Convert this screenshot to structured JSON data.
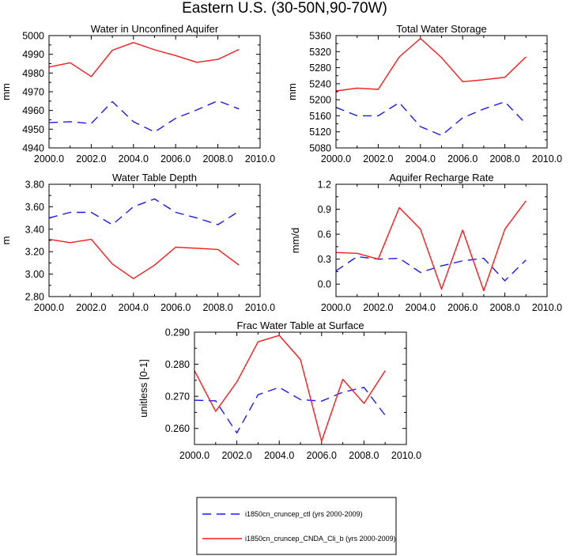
{
  "figure_title": "Eastern U.S. (30-50N,90-70W)",
  "colors": {
    "ctl": "#1a1aff",
    "exp": "#ff1a1a",
    "axis": "#000000"
  },
  "legend": [
    {
      "label": "i1850cn_cruncep_ctl (yrs 2000-2009)",
      "color": "#1a1aff",
      "style": "dashed"
    },
    {
      "label": "i1850cn_cruncep_CNDA_Cli_b (yrs 2000-2009)",
      "color": "#ff1a1a",
      "style": "solid"
    }
  ],
  "chart_data": [
    {
      "type": "line",
      "title": "Water in Unconfined Aquifer",
      "xlabel": "",
      "ylabel": "mm",
      "xlim": [
        2000,
        2010
      ],
      "ylim": [
        4940,
        5000
      ],
      "xticks": [
        "2000.0",
        "2002.0",
        "2004.0",
        "2006.0",
        "2008.0",
        "2010.0"
      ],
      "yticks": [
        "4940",
        "4950",
        "4960",
        "4970",
        "4980",
        "4990",
        "5000"
      ],
      "x": [
        2000,
        2001,
        2002,
        2003,
        2004,
        2005,
        2006,
        2007,
        2008,
        2009
      ],
      "series": [
        {
          "name": "i1850cn_cruncep_ctl (yrs 2000-2009)",
          "values": [
            4953.5,
            4954.0,
            4953.0,
            4964.7,
            4954.0,
            4948.5,
            4955.8,
            4960.3,
            4965.2,
            4960.8
          ]
        },
        {
          "name": "i1850cn_cruncep_CNDA_Cli_b (yrs 2000-2009)",
          "values": [
            4983.2,
            4985.5,
            4978.1,
            4992.2,
            4996.3,
            4992.4,
            4989.3,
            4985.7,
            4987.3,
            4992.6
          ]
        }
      ]
    },
    {
      "type": "line",
      "title": "Total Water Storage",
      "xlabel": "",
      "ylabel": "mm",
      "xlim": [
        2000,
        2010
      ],
      "ylim": [
        5080,
        5360
      ],
      "xticks": [
        "2000.0",
        "2002.0",
        "2004.0",
        "2006.0",
        "2008.0",
        "2010.0"
      ],
      "yticks": [
        "5080",
        "5120",
        "5160",
        "5200",
        "5240",
        "5280",
        "5320",
        "5360"
      ],
      "x": [
        2000,
        2001,
        2002,
        2003,
        2004,
        2005,
        2006,
        2007,
        2008,
        2009
      ],
      "series": [
        {
          "name": "i1850cn_cruncep_ctl (yrs 2000-2009)",
          "values": [
            5181,
            5160,
            5160,
            5193,
            5133,
            5111,
            5155,
            5177,
            5195,
            5140
          ]
        },
        {
          "name": "i1850cn_cruncep_CNDA_Cli_b (yrs 2000-2009)",
          "values": [
            5222,
            5229,
            5226,
            5307,
            5353,
            5305,
            5245,
            5250,
            5256,
            5307
          ]
        }
      ]
    },
    {
      "type": "line",
      "title": "Water Table Depth",
      "xlabel": "",
      "ylabel": "m",
      "xlim": [
        2000,
        2010
      ],
      "ylim": [
        2.8,
        3.8
      ],
      "xticks": [
        "2000.0",
        "2002.0",
        "2004.0",
        "2006.0",
        "2008.0",
        "2010.0"
      ],
      "yticks": [
        "2.80",
        "3.00",
        "3.20",
        "3.40",
        "3.60",
        "3.80"
      ],
      "x": [
        2000,
        2001,
        2002,
        2003,
        2004,
        2005,
        2006,
        2007,
        2008,
        2009
      ],
      "series": [
        {
          "name": "i1850cn_cruncep_ctl (yrs 2000-2009)",
          "values": [
            3.5,
            3.55,
            3.55,
            3.44,
            3.6,
            3.67,
            3.55,
            3.5,
            3.44,
            3.56
          ]
        },
        {
          "name": "i1850cn_cruncep_CNDA_Cli_b (yrs 2000-2009)",
          "values": [
            3.31,
            3.28,
            3.31,
            3.09,
            2.96,
            3.08,
            3.24,
            3.23,
            3.22,
            3.08
          ]
        }
      ]
    },
    {
      "type": "line",
      "title": "Aquifer Recharge Rate",
      "xlabel": "",
      "ylabel": "mm/d",
      "xlim": [
        2000,
        2010
      ],
      "ylim": [
        -0.15,
        1.2
      ],
      "xticks": [
        "2000.0",
        "2002.0",
        "2004.0",
        "2006.0",
        "2008.0",
        "2010.0"
      ],
      "yticks": [
        "0.0",
        "0.3",
        "0.6",
        "0.9",
        "1.2"
      ],
      "x": [
        2000,
        2001,
        2002,
        2003,
        2004,
        2005,
        2006,
        2007,
        2008,
        2009
      ],
      "series": [
        {
          "name": "i1850cn_cruncep_ctl (yrs 2000-2009)",
          "values": [
            0.16,
            0.33,
            0.3,
            0.31,
            0.14,
            0.22,
            0.28,
            0.31,
            0.04,
            0.29
          ]
        },
        {
          "name": "i1850cn_cruncep_CNDA_Cli_b (yrs 2000-2009)",
          "values": [
            0.38,
            0.37,
            0.3,
            0.92,
            0.66,
            -0.06,
            0.65,
            -0.08,
            0.66,
            1.0
          ]
        }
      ]
    },
    {
      "type": "line",
      "title": "Frac Water Table at Surface",
      "xlabel": "",
      "ylabel": "unitless [0-1]",
      "xlim": [
        2000,
        2010
      ],
      "ylim": [
        0.255,
        0.29
      ],
      "xticks": [
        "2000.0",
        "2002.0",
        "2004.0",
        "2006.0",
        "2008.0",
        "2010.0"
      ],
      "yticks": [
        "0.260",
        "0.270",
        "0.280",
        "0.290"
      ],
      "x": [
        2000,
        2001,
        2002,
        2003,
        2004,
        2005,
        2006,
        2007,
        2008,
        2009
      ],
      "series": [
        {
          "name": "i1850cn_cruncep_ctl (yrs 2000-2009)",
          "values": [
            0.2688,
            0.2686,
            0.2586,
            0.2705,
            0.2728,
            0.269,
            0.2685,
            0.2713,
            0.2728,
            0.2641
          ]
        },
        {
          "name": "i1850cn_cruncep_CNDA_Cli_b (yrs 2000-2009)",
          "values": [
            0.278,
            0.2653,
            0.2745,
            0.287,
            0.289,
            0.2815,
            0.256,
            0.2753,
            0.2678,
            0.278
          ]
        }
      ]
    }
  ]
}
